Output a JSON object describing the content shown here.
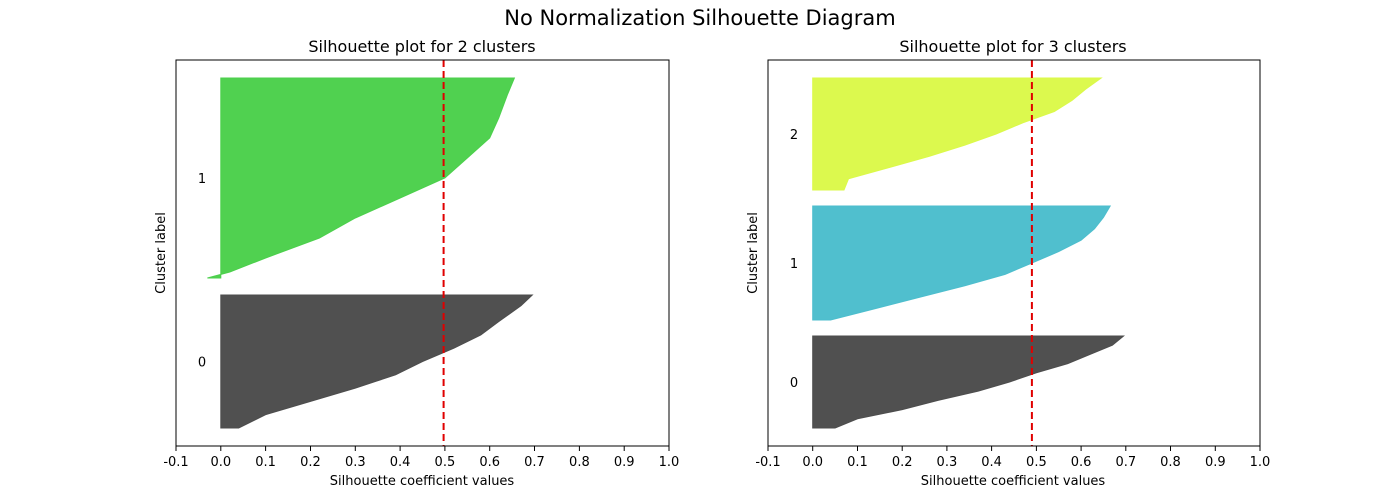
{
  "figure": {
    "title": "No Normalization Silhouette Diagram"
  },
  "chart_data": [
    {
      "type": "area",
      "title": "Silhouette plot for 2 clusters",
      "xlabel": "Silhouette coefficient values",
      "ylabel": "Cluster label",
      "xlim": [
        -0.1,
        1.0
      ],
      "xticks": [
        "-0.1",
        "0.0",
        "0.1",
        "0.2",
        "0.3",
        "0.4",
        "0.5",
        "0.6",
        "0.7",
        "0.8",
        "0.9",
        "1.0"
      ],
      "average_silhouette": 0.497,
      "clusters": [
        {
          "label": "0",
          "color": "#4d4d4d",
          "max": 0.695,
          "min": 0.0,
          "profile": [
            [
              0,
              0.695
            ],
            [
              0.08,
              0.67
            ],
            [
              0.2,
              0.62
            ],
            [
              0.3,
              0.58
            ],
            [
              0.4,
              0.52
            ],
            [
              0.5,
              0.45
            ],
            [
              0.6,
              0.39
            ],
            [
              0.7,
              0.3
            ],
            [
              0.8,
              0.2
            ],
            [
              0.9,
              0.1
            ],
            [
              1,
              0.04
            ]
          ]
        },
        {
          "label": "1",
          "color": "#4cd04c",
          "max": 0.655,
          "min": -0.03,
          "profile": [
            [
              0,
              0.655
            ],
            [
              0.08,
              0.64
            ],
            [
              0.2,
              0.62
            ],
            [
              0.3,
              0.6
            ],
            [
              0.4,
              0.55
            ],
            [
              0.5,
              0.5
            ],
            [
              0.6,
              0.4
            ],
            [
              0.7,
              0.3
            ],
            [
              0.8,
              0.22
            ],
            [
              0.9,
              0.1
            ],
            [
              0.97,
              0.02
            ],
            [
              1,
              -0.03
            ]
          ]
        }
      ]
    },
    {
      "type": "area",
      "title": "Silhouette plot for 3 clusters",
      "xlabel": "Silhouette coefficient values",
      "ylabel": "Cluster label",
      "xlim": [
        -0.1,
        1.0
      ],
      "xticks": [
        "-0.1",
        "0.0",
        "0.1",
        "0.2",
        "0.3",
        "0.4",
        "0.5",
        "0.6",
        "0.7",
        "0.8",
        "0.9",
        "1.0"
      ],
      "average_silhouette": 0.49,
      "clusters": [
        {
          "label": "0",
          "color": "#4d4d4d",
          "max": 0.695,
          "min": 0.0,
          "profile": [
            [
              0,
              0.695
            ],
            [
              0.1,
              0.67
            ],
            [
              0.2,
              0.62
            ],
            [
              0.3,
              0.57
            ],
            [
              0.4,
              0.5
            ],
            [
              0.5,
              0.44
            ],
            [
              0.6,
              0.37
            ],
            [
              0.7,
              0.28
            ],
            [
              0.8,
              0.2
            ],
            [
              0.9,
              0.1
            ],
            [
              1,
              0.05
            ]
          ]
        },
        {
          "label": "1",
          "color": "#4dbecd",
          "max": 0.665,
          "min": 0.0,
          "profile": [
            [
              0,
              0.665
            ],
            [
              0.1,
              0.65
            ],
            [
              0.2,
              0.63
            ],
            [
              0.3,
              0.6
            ],
            [
              0.4,
              0.55
            ],
            [
              0.5,
              0.49
            ],
            [
              0.6,
              0.43
            ],
            [
              0.7,
              0.34
            ],
            [
              0.8,
              0.24
            ],
            [
              0.9,
              0.14
            ],
            [
              1,
              0.04
            ]
          ]
        },
        {
          "label": "2",
          "color": "#dbf94a",
          "max": 0.645,
          "min": 0.0,
          "profile": [
            [
              0,
              0.645
            ],
            [
              0.1,
              0.61
            ],
            [
              0.2,
              0.58
            ],
            [
              0.3,
              0.54
            ],
            [
              0.4,
              0.47
            ],
            [
              0.5,
              0.41
            ],
            [
              0.6,
              0.34
            ],
            [
              0.7,
              0.26
            ],
            [
              0.8,
              0.17
            ],
            [
              0.9,
              0.08
            ],
            [
              1,
              0.07
            ]
          ]
        }
      ]
    }
  ]
}
